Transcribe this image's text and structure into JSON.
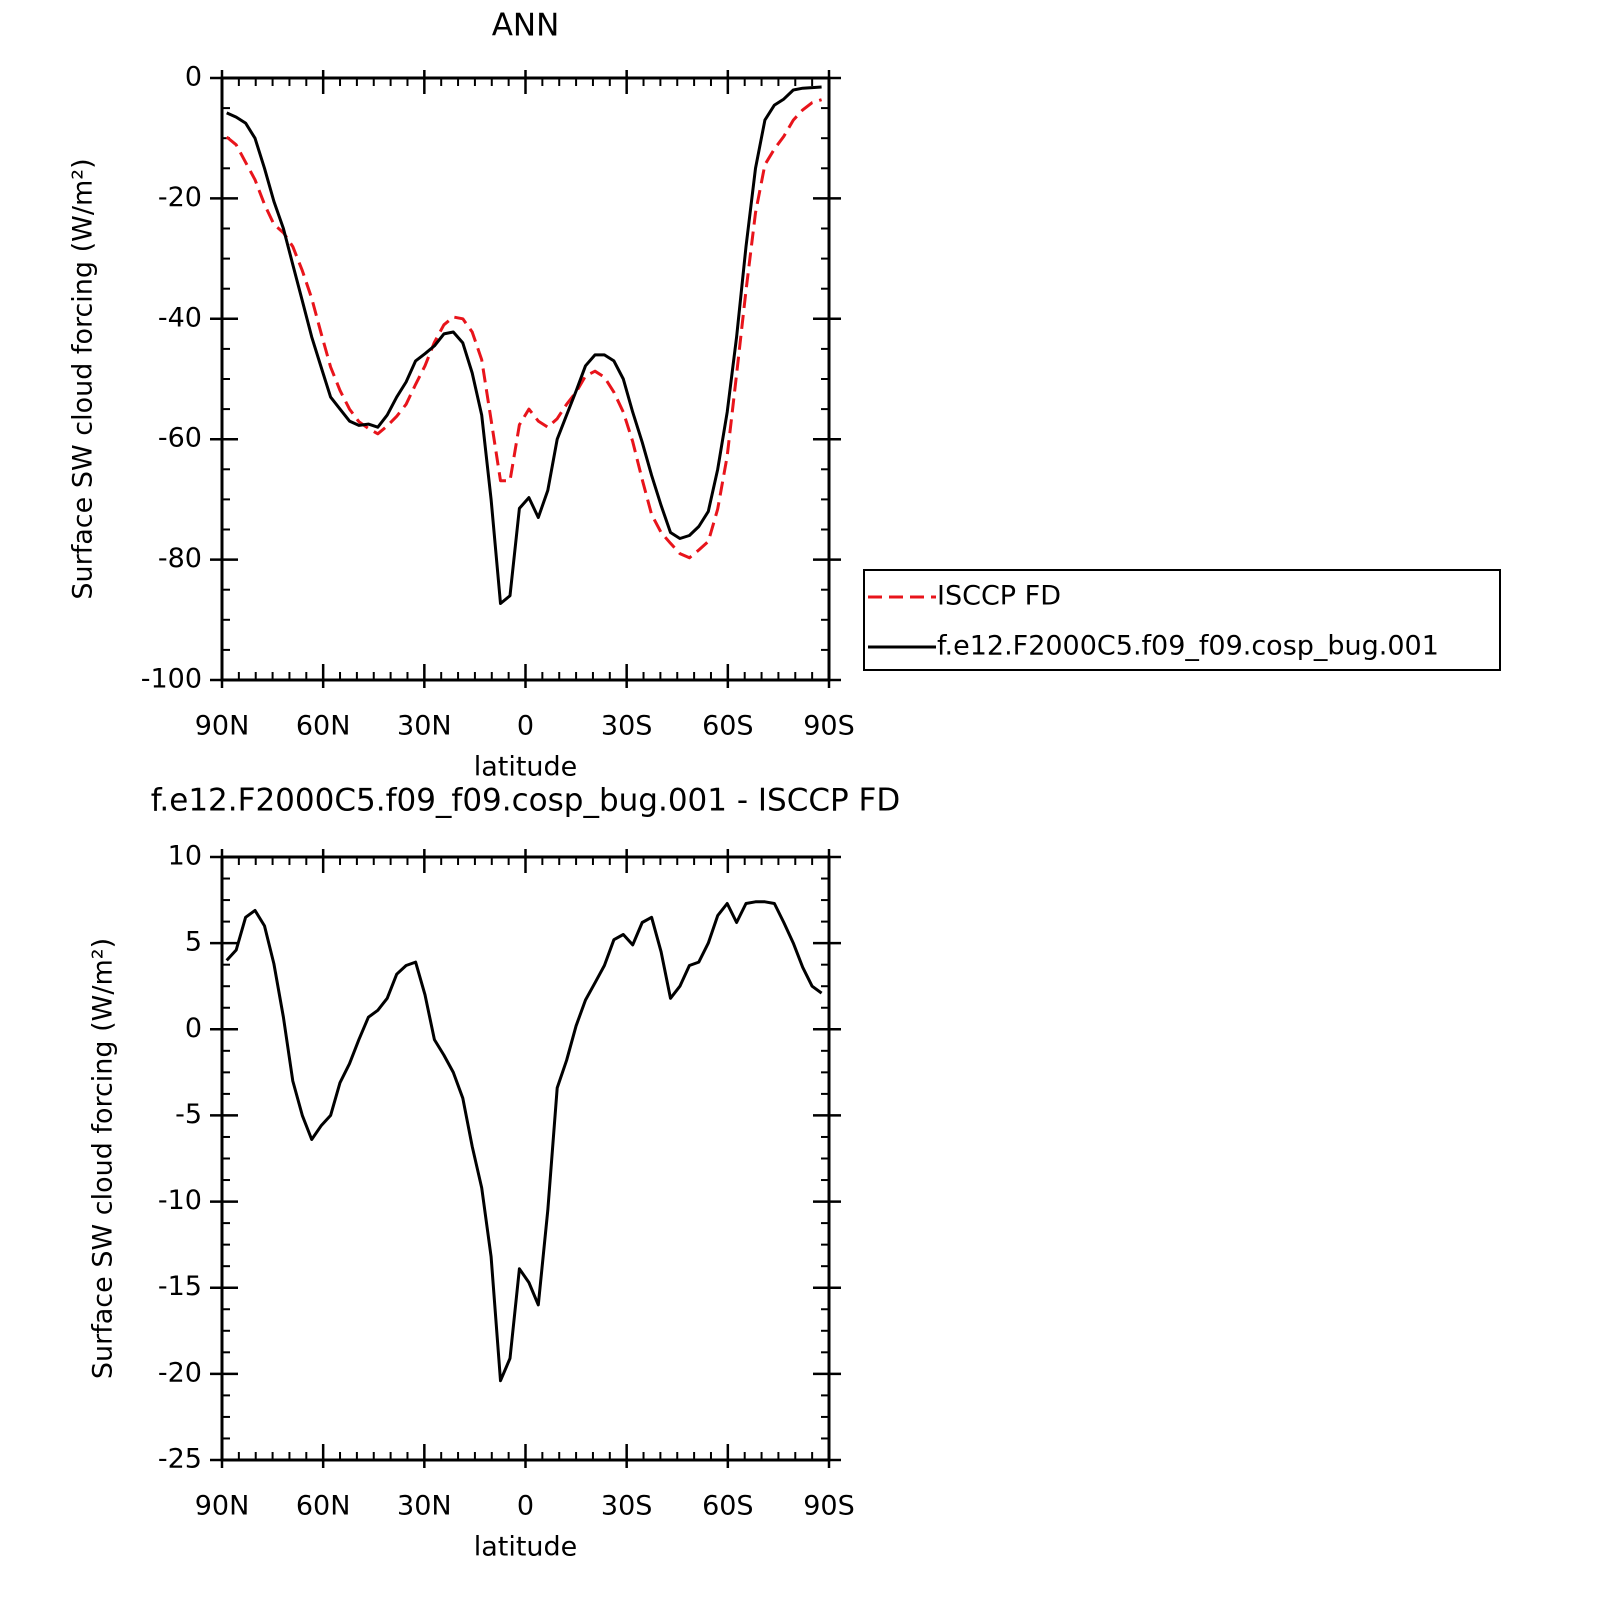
{
  "chart_data": [
    {
      "type": "line",
      "title": "ANN",
      "xlabel": "latitude",
      "ylabel": "Surface SW cloud forcing (W/m²)",
      "x": [
        88.6,
        85.8,
        83.0,
        80.2,
        77.4,
        74.6,
        71.8,
        69.0,
        66.2,
        63.4,
        60.6,
        57.8,
        55.0,
        52.2,
        49.4,
        46.6,
        43.8,
        41.0,
        38.2,
        35.4,
        32.6,
        29.8,
        27.0,
        24.2,
        21.4,
        18.6,
        15.8,
        13.0,
        10.2,
        7.4,
        4.6,
        1.8,
        -1.0,
        -3.8,
        -6.6,
        -9.4,
        -12.2,
        -15.0,
        -17.8,
        -20.6,
        -23.4,
        -26.2,
        -29.0,
        -31.8,
        -34.6,
        -37.4,
        -40.2,
        -43.0,
        -45.8,
        -48.6,
        -51.4,
        -54.2,
        -57.0,
        -59.8,
        -62.6,
        -65.4,
        -68.2,
        -71.0,
        -73.8,
        -76.6,
        -79.4,
        -82.2,
        -85.0,
        -87.8
      ],
      "series": [
        {
          "name": "ISCCP FD",
          "color": "#e8141b",
          "dash": true,
          "values": [
            -9.8,
            -11.1,
            -14,
            -16.9,
            -21,
            -24.3,
            -25.7,
            -28,
            -32,
            -36.6,
            -42.4,
            -48,
            -51.9,
            -55,
            -57.1,
            -58.2,
            -59.1,
            -57.8,
            -56.2,
            -54.2,
            -50.9,
            -47.8,
            -43.9,
            -41,
            -39.7,
            -40,
            -42.2,
            -46.8,
            -56.8,
            -66.9,
            -66.9,
            -57.6,
            -55,
            -57,
            -58,
            -56.6,
            -54.2,
            -52.2,
            -49.5,
            -48.7,
            -49.7,
            -52.2,
            -55.5,
            -60.4,
            -66.7,
            -72.5,
            -75.5,
            -77.3,
            -79,
            -79.7,
            -78.4,
            -77,
            -71.6,
            -62.8,
            -49.2,
            -35.3,
            -22.4,
            -14.4,
            -11.8,
            -9.7,
            -7,
            -5.3,
            -4.1,
            -3.6
          ]
        },
        {
          "name": "f.e12.F2000C5.f09_f09.cosp_bug.001",
          "color": "#000000",
          "dash": false,
          "values": [
            -5.8,
            -6.5,
            -7.5,
            -10,
            -15,
            -20.5,
            -25,
            -31,
            -37,
            -43,
            -48,
            -53,
            -55,
            -57,
            -57.7,
            -57.5,
            -58,
            -56,
            -53,
            -50.5,
            -47,
            -45.8,
            -44.5,
            -42.5,
            -42.2,
            -44,
            -49,
            -56,
            -70,
            -87.3,
            -86,
            -71.5,
            -69.7,
            -73,
            -68.5,
            -60,
            -56,
            -52,
            -47.8,
            -46,
            -46,
            -47,
            -50,
            -55.5,
            -60.5,
            -66,
            -71,
            -75.5,
            -76.5,
            -76,
            -74.5,
            -72,
            -65,
            -55.5,
            -43,
            -28,
            -15,
            -7,
            -4.5,
            -3.5,
            -2,
            -1.7,
            -1.6,
            -1.5
          ]
        }
      ],
      "xlim": [
        90,
        -90
      ],
      "xticks": [
        {
          "value": 90,
          "label": "90N"
        },
        {
          "value": 60,
          "label": "60N"
        },
        {
          "value": 30,
          "label": "30N"
        },
        0,
        {
          "value": -30,
          "label": "30S"
        },
        {
          "value": -60,
          "label": "60S"
        },
        {
          "value": -90,
          "label": "90S"
        }
      ],
      "ylim": [
        -100,
        0
      ],
      "yticks": [
        0,
        -20,
        -40,
        -60,
        -80,
        -100
      ],
      "legend": "right"
    },
    {
      "type": "line",
      "title": "f.e12.F2000C5.f09_f09.cosp_bug.001 - ISCCP FD",
      "xlabel": "latitude",
      "ylabel": "Surface SW cloud forcing (W/m²)",
      "x": [
        88.6,
        85.8,
        83.0,
        80.2,
        77.4,
        74.6,
        71.8,
        69.0,
        66.2,
        63.4,
        60.6,
        57.8,
        55.0,
        52.2,
        49.4,
        46.6,
        43.8,
        41.0,
        38.2,
        35.4,
        32.6,
        29.8,
        27.0,
        24.2,
        21.4,
        18.6,
        15.8,
        13.0,
        10.2,
        7.4,
        4.6,
        1.8,
        -1.0,
        -3.8,
        -6.6,
        -9.4,
        -12.2,
        -15.0,
        -17.8,
        -20.6,
        -23.4,
        -26.2,
        -29.0,
        -31.8,
        -34.6,
        -37.4,
        -40.2,
        -43.0,
        -45.8,
        -48.6,
        -51.4,
        -54.2,
        -57.0,
        -59.8,
        -62.6,
        -65.4,
        -68.2,
        -71.0,
        -73.8,
        -76.6,
        -79.4,
        -82.2,
        -85.0,
        -87.8
      ],
      "series": [
        {
          "color": "#000000",
          "dash": false,
          "values": [
            4,
            4.6,
            6.5,
            6.9,
            6,
            3.8,
            0.7,
            -3,
            -5,
            -6.4,
            -5.6,
            -5,
            -3.1,
            -2,
            -0.6,
            0.7,
            1.1,
            1.8,
            3.2,
            3.7,
            3.9,
            2,
            -0.6,
            -1.5,
            -2.5,
            -4,
            -6.8,
            -9.2,
            -13.2,
            -20.4,
            -19.1,
            -13.9,
            -14.7,
            -16,
            -10.5,
            -3.4,
            -1.8,
            0.2,
            1.7,
            2.7,
            3.7,
            5.2,
            5.5,
            4.9,
            6.2,
            6.5,
            4.5,
            1.8,
            2.5,
            3.7,
            3.9,
            5,
            6.6,
            7.3,
            6.2,
            7.3,
            7.4,
            7.4,
            7.3,
            6.2,
            5,
            3.6,
            2.5,
            2.1
          ]
        }
      ],
      "xlim": [
        90,
        -90
      ],
      "xticks": [
        {
          "value": 90,
          "label": "90N"
        },
        {
          "value": 60,
          "label": "60N"
        },
        {
          "value": 30,
          "label": "30N"
        },
        0,
        {
          "value": -30,
          "label": "30S"
        },
        {
          "value": -60,
          "label": "60S"
        },
        {
          "value": -90,
          "label": "90S"
        }
      ],
      "ylim": [
        -25,
        10
      ],
      "yticks": [
        10,
        5,
        0,
        -5,
        -10,
        -15,
        -20,
        -25
      ]
    }
  ]
}
